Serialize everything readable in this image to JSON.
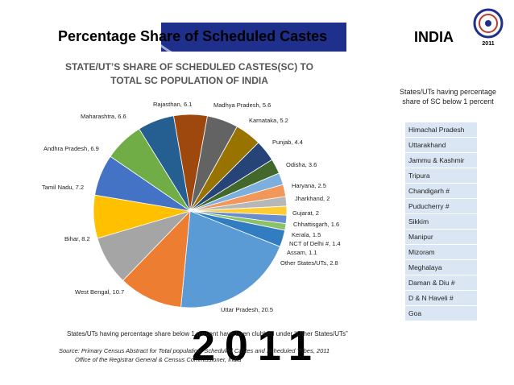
{
  "header": {
    "title": "Percentage Share of Scheduled Castes",
    "country": "INDIA",
    "logo_text": "2011"
  },
  "chart_data": {
    "type": "pie",
    "title": "STATE/UT’S SHARE OF SCHEDULED CASTES(SC) TO TOTAL SC POPULATION OF INDIA",
    "slices": [
      {
        "label": "Uttar Pradesh",
        "value": 20.5,
        "color": "#5b9bd5"
      },
      {
        "label": "West Bengal",
        "value": 10.7,
        "color": "#ed7d31"
      },
      {
        "label": "Bihar",
        "value": 8.2,
        "color": "#a5a5a5"
      },
      {
        "label": "Tamil Nadu",
        "value": 7.2,
        "color": "#ffc000"
      },
      {
        "label": "Andhra Pradesh",
        "value": 6.9,
        "color": "#4472c4"
      },
      {
        "label": "Maharashtra",
        "value": 6.6,
        "color": "#70ad47"
      },
      {
        "label": "Rajasthan",
        "value": 6.1,
        "color": "#255e91"
      },
      {
        "label": "Madhya Pradesh",
        "value": 5.6,
        "color": "#9e480e"
      },
      {
        "label": "Karnataka",
        "value": 5.2,
        "color": "#636363"
      },
      {
        "label": "Punjab",
        "value": 4.4,
        "color": "#997300"
      },
      {
        "label": "Odisha",
        "value": 3.6,
        "color": "#264478"
      },
      {
        "label": "Haryana",
        "value": 2.5,
        "color": "#43682b"
      },
      {
        "label": "Jharkhand",
        "value": 2.0,
        "color": "#7cafdd"
      },
      {
        "label": "Gujarat",
        "value": 2.0,
        "color": "#f1975a"
      },
      {
        "label": "Chhattisgarh",
        "value": 1.6,
        "color": "#b7b7b7"
      },
      {
        "label": "Kerala",
        "value": 1.5,
        "color": "#ffcd33"
      },
      {
        "label": "NCT of Delhi #",
        "value": 1.4,
        "color": "#698ed0"
      },
      {
        "label": "Assam",
        "value": 1.1,
        "color": "#8cc168"
      },
      {
        "label": "Other States/UTs",
        "value": 2.8,
        "color": "#327dc2"
      }
    ]
  },
  "side_panel": {
    "heading": "States/UTs having percentage share of SC below 1 percent",
    "states": [
      "Himachal Pradesh",
      "Uttarakhand",
      "Jammu & Kashmir",
      "Tripura",
      "Chandigarh #",
      "Puducherry #",
      "Sikkim",
      "Manipur",
      "Mizoram",
      "Meghalaya",
      "Daman & Diu #",
      "D & N Haveli #",
      "Goa"
    ]
  },
  "footer": {
    "note": "States/UTs  having percentage share below 1 percent have been clubbed under “Other States/UTs”",
    "source_line1": "Source: Primary Census Abstract for Total population, Scheduled Castes and Scheduled Tribes, 2011",
    "source_line2": "Office of the Registrar General & Census Commissioner, India",
    "watermark": "2011"
  }
}
